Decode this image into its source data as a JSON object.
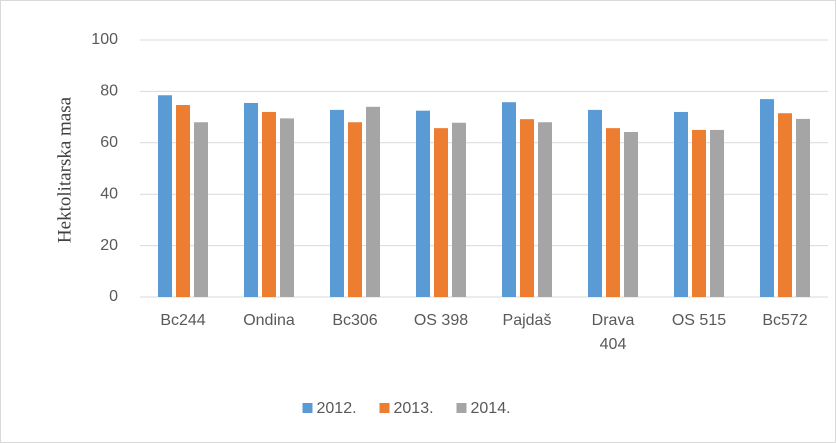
{
  "chart_data": {
    "type": "bar",
    "y_label": "Hektolitarska masa",
    "categories": [
      "Bc244",
      "Ondina",
      "Bc306",
      "OS 398",
      "Pajdaš",
      "Drava 404",
      "OS 515",
      "Bc572"
    ],
    "series": [
      {
        "name": "2012.",
        "color": "#5b9bd5",
        "values": [
          78.5,
          75.5,
          72.8,
          72.5,
          75.8,
          72.8,
          72,
          77
        ]
      },
      {
        "name": "2013.",
        "color": "#ed7d31",
        "values": [
          74.7,
          72,
          68,
          65.7,
          69.2,
          65.7,
          65,
          71.5
        ]
      },
      {
        "name": "2014.",
        "color": "#a5a5a5",
        "values": [
          68,
          69.5,
          74,
          67.8,
          68,
          64.2,
          65,
          69.3
        ]
      }
    ],
    "ylim": [
      0,
      100
    ],
    "yticks": [
      0,
      20,
      40,
      60,
      80,
      100
    ],
    "grid": true,
    "legend": "bottom"
  }
}
